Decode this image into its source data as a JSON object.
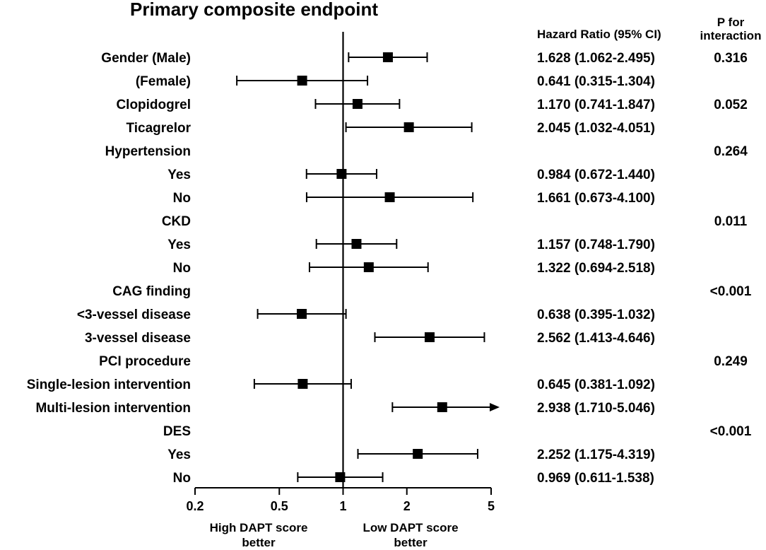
{
  "chart_data": {
    "type": "forest",
    "title": "Primary composite endpoint",
    "hr_header": "Hazard Ratio (95% CI)",
    "p_header": [
      "P for",
      "interaction"
    ],
    "xscale": "log",
    "xlim": [
      0.2,
      5
    ],
    "xticks": [
      0.2,
      0.5,
      1,
      2,
      5
    ],
    "xtick_labels": [
      "0.2",
      "0.5",
      "1",
      "2",
      "5"
    ],
    "reference_line": 1,
    "bottom_label_left": [
      "High DAPT score",
      "better"
    ],
    "bottom_label_right": [
      "Low DAPT score",
      "better"
    ],
    "rows": [
      {
        "label": "Gender (Male)",
        "hr": 1.628,
        "lo": 1.062,
        "hi": 2.495,
        "ci_text": "1.628 (1.062-2.495)",
        "p": "0.316"
      },
      {
        "label": "(Female)",
        "hr": 0.641,
        "lo": 0.315,
        "hi": 1.304,
        "ci_text": "0.641 (0.315-1.304)",
        "p": ""
      },
      {
        "label": "Clopidogrel",
        "hr": 1.17,
        "lo": 0.741,
        "hi": 1.847,
        "ci_text": "1.170 (0.741-1.847)",
        "p": "0.052"
      },
      {
        "label": "Ticagrelor",
        "hr": 2.045,
        "lo": 1.032,
        "hi": 4.051,
        "ci_text": "2.045 (1.032-4.051)",
        "p": ""
      },
      {
        "label": "Hypertension",
        "hr": null,
        "lo": null,
        "hi": null,
        "ci_text": "",
        "p": "0.264"
      },
      {
        "label": "Yes",
        "hr": 0.984,
        "lo": 0.672,
        "hi": 1.44,
        "ci_text": "0.984 (0.672-1.440)",
        "p": ""
      },
      {
        "label": "No",
        "hr": 1.661,
        "lo": 0.673,
        "hi": 4.1,
        "ci_text": "1.661 (0.673-4.100)",
        "p": ""
      },
      {
        "label": "CKD",
        "hr": null,
        "lo": null,
        "hi": null,
        "ci_text": "",
        "p": "0.011"
      },
      {
        "label": "Yes",
        "hr": 1.157,
        "lo": 0.748,
        "hi": 1.79,
        "ci_text": "1.157 (0.748-1.790)",
        "p": ""
      },
      {
        "label": "No",
        "hr": 1.322,
        "lo": 0.694,
        "hi": 2.518,
        "ci_text": "1.322 (0.694-2.518)",
        "p": ""
      },
      {
        "label": "CAG finding",
        "hr": null,
        "lo": null,
        "hi": null,
        "ci_text": "",
        "p": "<0.001"
      },
      {
        "label": "<3-vessel disease",
        "hr": 0.638,
        "lo": 0.395,
        "hi": 1.032,
        "ci_text": "0.638 (0.395-1.032)",
        "p": ""
      },
      {
        "label": "3-vessel disease",
        "hr": 2.562,
        "lo": 1.413,
        "hi": 4.646,
        "ci_text": "2.562 (1.413-4.646)",
        "p": ""
      },
      {
        "label": "PCI procedure",
        "hr": null,
        "lo": null,
        "hi": null,
        "ci_text": "",
        "p": "0.249"
      },
      {
        "label": "Single-lesion intervention",
        "hr": 0.645,
        "lo": 0.381,
        "hi": 1.092,
        "ci_text": "0.645 (0.381-1.092)",
        "p": ""
      },
      {
        "label": "Multi-lesion intervention",
        "hr": 2.938,
        "lo": 1.71,
        "hi": 5.046,
        "ci_text": "2.938 (1.710-5.046)",
        "p": "",
        "arrow": true
      },
      {
        "label": "DES",
        "hr": null,
        "lo": null,
        "hi": null,
        "ci_text": "",
        "p": "<0.001"
      },
      {
        "label": "Yes",
        "hr": 2.252,
        "lo": 1.175,
        "hi": 4.319,
        "ci_text": "2.252 (1.175-4.319)",
        "p": ""
      },
      {
        "label": "No",
        "hr": 0.969,
        "lo": 0.611,
        "hi": 1.538,
        "ci_text": "0.969 (0.611-1.538)",
        "p": ""
      }
    ]
  }
}
